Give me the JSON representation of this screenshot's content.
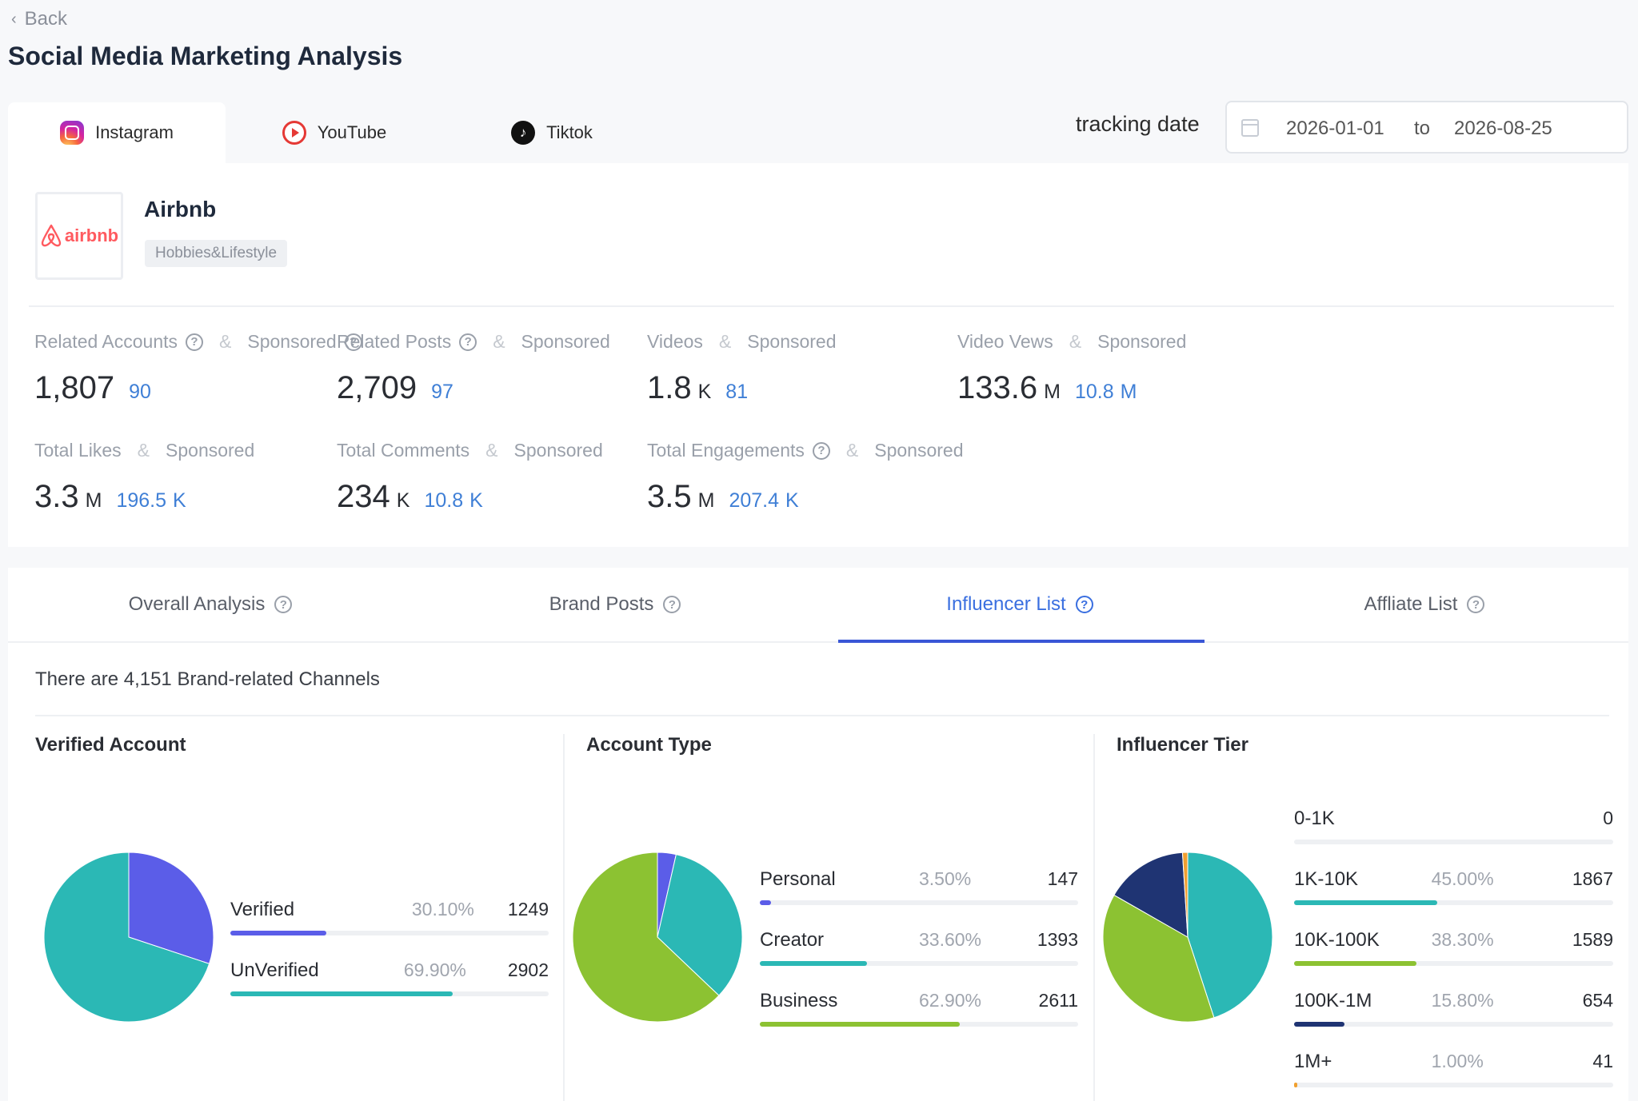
{
  "nav": {
    "back_label": "Back"
  },
  "page_title": "Social Media Marketing Analysis",
  "platform_tabs": [
    {
      "label": "Instagram",
      "icon": "instagram-icon",
      "active": true
    },
    {
      "label": "YouTube",
      "icon": "youtube-icon",
      "active": false
    },
    {
      "label": "Tiktok",
      "icon": "tiktok-icon",
      "active": false
    }
  ],
  "tracking": {
    "label": "tracking date",
    "start": "2026-01-01",
    "separator": "to",
    "end": "2026-08-25"
  },
  "brand": {
    "name": "Airbnb",
    "logo_text": "airbnb",
    "category": "Hobbies&Lifestyle"
  },
  "stats": [
    {
      "label": "Related Accounts",
      "sponsored_label": "Sponsored",
      "value": "1,807",
      "unit": "",
      "sponsored": "90",
      "sponsored_unit": ""
    },
    {
      "label": "Related Posts",
      "sponsored_label": "Sponsored",
      "value": "2,709",
      "unit": "",
      "sponsored": "97",
      "sponsored_unit": ""
    },
    {
      "label": "Videos",
      "sponsored_label": "Sponsored",
      "value": "1.8",
      "unit": "K",
      "sponsored": "81",
      "sponsored_unit": ""
    },
    {
      "label": "Video Vews",
      "sponsored_label": "Sponsored",
      "value": "133.6",
      "unit": "M",
      "sponsored": "10.8",
      "sponsored_unit": "M"
    },
    {
      "label": "Total Likes",
      "sponsored_label": "Sponsored",
      "value": "3.3",
      "unit": "M",
      "sponsored": "196.5",
      "sponsored_unit": "K"
    },
    {
      "label": "Total Comments",
      "sponsored_label": "Sponsored",
      "value": "234",
      "unit": "K",
      "sponsored": "10.8",
      "sponsored_unit": "K"
    },
    {
      "label": "Total Engagements",
      "sponsored_label": "Sponsored",
      "value": "3.5",
      "unit": "M",
      "sponsored": "207.4",
      "sponsored_unit": "K"
    }
  ],
  "analysis_tabs": [
    {
      "label": "Overall Analysis",
      "active": false
    },
    {
      "label": "Brand Posts",
      "active": false
    },
    {
      "label": "Influencer List",
      "active": true
    },
    {
      "label": "Affliate List",
      "active": false
    }
  ],
  "channels_text": "There are 4,151 Brand-related Channels",
  "colors": {
    "accent": "#3a6fe0",
    "sponsored": "#3f7fd6",
    "purple": "#5b5de8",
    "teal": "#2bb8b5",
    "green": "#8cc232",
    "navy": "#1f3473",
    "orange": "#f0a030"
  },
  "chart_data": [
    {
      "type": "pie",
      "title": "Verified Account",
      "categories": [
        "Verified",
        "UnVerified"
      ],
      "percent_labels": [
        "30.10%",
        "69.90%"
      ],
      "values": [
        1249,
        2902
      ],
      "colors": [
        "#5b5de8",
        "#2bb8b5"
      ]
    },
    {
      "type": "pie",
      "title": "Account Type",
      "categories": [
        "Personal",
        "Creator",
        "Business"
      ],
      "percent_labels": [
        "3.50%",
        "33.60%",
        "62.90%"
      ],
      "values": [
        147,
        1393,
        2611
      ],
      "colors": [
        "#5b5de8",
        "#2bb8b5",
        "#8cc232"
      ]
    },
    {
      "type": "pie",
      "title": "Influencer Tier",
      "categories": [
        "0-1K",
        "1K-10K",
        "10K-100K",
        "100K-1M",
        "1M+"
      ],
      "percent_labels": [
        "",
        "45.00%",
        "38.30%",
        "15.80%",
        "1.00%"
      ],
      "values": [
        0,
        1867,
        1589,
        654,
        41
      ],
      "colors": [
        "#5b5de8",
        "#2bb8b5",
        "#8cc232",
        "#1f3473",
        "#f0a030"
      ]
    }
  ]
}
